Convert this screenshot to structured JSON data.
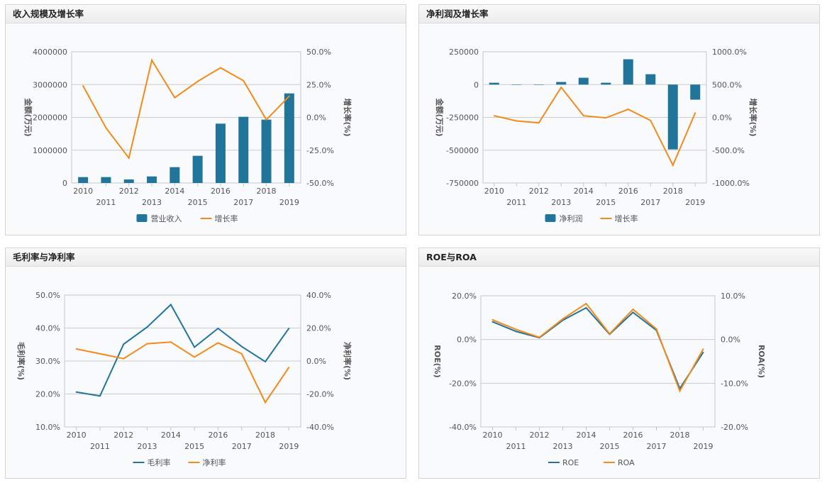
{
  "colors": {
    "bar": "#21759b",
    "line_blue": "#21759b",
    "line_orange": "#f28a1c",
    "grid": "#cccccc"
  },
  "chart_data": [
    {
      "type": "bar+line",
      "title": "收入规模及增长率",
      "categories": [
        "2010",
        "2011",
        "2012",
        "2013",
        "2014",
        "2015",
        "2016",
        "2017",
        "2018",
        "2019"
      ],
      "left_axis": {
        "label": "金额(万元)",
        "range": [
          0,
          4000000
        ],
        "ticks": [
          "0",
          "1000000",
          "2000000",
          "3000000",
          "4000000"
        ]
      },
      "right_axis": {
        "label": "增长率(%)",
        "range": [
          -50,
          50
        ],
        "ticks": [
          "-50.0%",
          "-25.0%",
          "0.0%",
          "25.0%",
          "50.0%"
        ]
      },
      "grid": true,
      "legend": "bottom",
      "series": [
        {
          "name": "营业收入",
          "kind": "bar",
          "axis": "left",
          "color": "#21759b",
          "values": [
            180000,
            180000,
            108000,
            200000,
            483000,
            829000,
            1809000,
            2018000,
            1931000,
            2731000
          ]
        },
        {
          "name": "增长率",
          "kind": "line",
          "axis": "right",
          "color": "#f28a1c",
          "values": [
            24.0,
            -8.0,
            -31.0,
            43.6,
            15.0,
            27.4,
            37.8,
            28.0,
            -1.8,
            16.2
          ]
        }
      ]
    },
    {
      "type": "bar+line",
      "title": "净利润及增长率",
      "categories": [
        "2010",
        "2011",
        "2012",
        "2013",
        "2014",
        "2015",
        "2016",
        "2017",
        "2018",
        "2019"
      ],
      "left_axis": {
        "label": "金额(万元)",
        "range": [
          -750000,
          250000
        ],
        "ticks": [
          "-750000",
          "-500000",
          "-250000",
          "0",
          "250000"
        ]
      },
      "right_axis": {
        "label": "增长率(%)",
        "range": [
          -1000,
          1000
        ],
        "ticks": [
          "-1000.0%",
          "-500.0%",
          "0.0%",
          "500.0%",
          "1000.0%"
        ]
      },
      "grid": true,
      "legend": "bottom",
      "series": [
        {
          "name": "净利润",
          "kind": "bar",
          "axis": "left",
          "color": "#21759b",
          "values": [
            14000,
            0,
            0,
            20000,
            52000,
            14000,
            193000,
            79000,
            -494000,
            -115000
          ]
        },
        {
          "name": "增长率",
          "kind": "line",
          "axis": "right",
          "color": "#f28a1c",
          "values": [
            25,
            -54,
            -83,
            458,
            25,
            -7,
            123,
            -47,
            -728,
            68
          ]
        }
      ]
    },
    {
      "type": "line",
      "title": "毛利率与净利率",
      "categories": [
        "2010",
        "2011",
        "2012",
        "2013",
        "2014",
        "2015",
        "2016",
        "2017",
        "2018",
        "2019"
      ],
      "left_axis": {
        "label": "毛利率(%)",
        "range": [
          10,
          50
        ],
        "ticks": [
          "10.0%",
          "20.0%",
          "30.0%",
          "40.0%",
          "50.0%"
        ]
      },
      "right_axis": {
        "label": "净利率(%)",
        "range": [
          -40,
          40
        ],
        "ticks": [
          "-40.0%",
          "-20.0%",
          "0.0%",
          "20.0%",
          "40.0%"
        ]
      },
      "grid": true,
      "legend": "bottom",
      "series": [
        {
          "name": "毛利率",
          "kind": "line",
          "axis": "left",
          "color": "#21759b",
          "values": [
            20.6,
            19.4,
            35.1,
            40.3,
            47.1,
            34.2,
            39.9,
            34.4,
            29.8,
            39.9
          ]
        },
        {
          "name": "净利率",
          "kind": "line",
          "axis": "right",
          "color": "#f28a1c",
          "values": [
            7.3,
            4.4,
            1.4,
            10.5,
            11.5,
            2.4,
            11.0,
            4.4,
            -25.1,
            -3.9
          ]
        }
      ]
    },
    {
      "type": "line",
      "title": "ROE与ROA",
      "categories": [
        "2010",
        "2011",
        "2012",
        "2013",
        "2014",
        "2015",
        "2016",
        "2017",
        "2018",
        "2019"
      ],
      "left_axis": {
        "label": "ROE(%)",
        "range": [
          -40,
          20
        ],
        "ticks": [
          "-40.0%",
          "-20.0%",
          "0.0%",
          "20.0%"
        ]
      },
      "right_axis": {
        "label": "ROA(%)",
        "range": [
          -20,
          10
        ],
        "ticks": [
          "-20.0%",
          "-10.0%",
          "0.0%",
          "10.0%"
        ]
      },
      "grid": true,
      "legend": "bottom",
      "series": [
        {
          "name": "ROE",
          "kind": "line",
          "axis": "left",
          "color": "#21759b",
          "values": [
            8.1,
            3.7,
            0.8,
            8.8,
            14.5,
            2.4,
            12.4,
            4.2,
            -22.4,
            -5.9
          ]
        },
        {
          "name": "ROA",
          "kind": "line",
          "axis": "right",
          "color": "#f28a1c",
          "values": [
            4.5,
            2.3,
            0.5,
            4.7,
            8.2,
            1.3,
            6.9,
            2.4,
            -11.8,
            -2.2
          ]
        }
      ]
    }
  ]
}
